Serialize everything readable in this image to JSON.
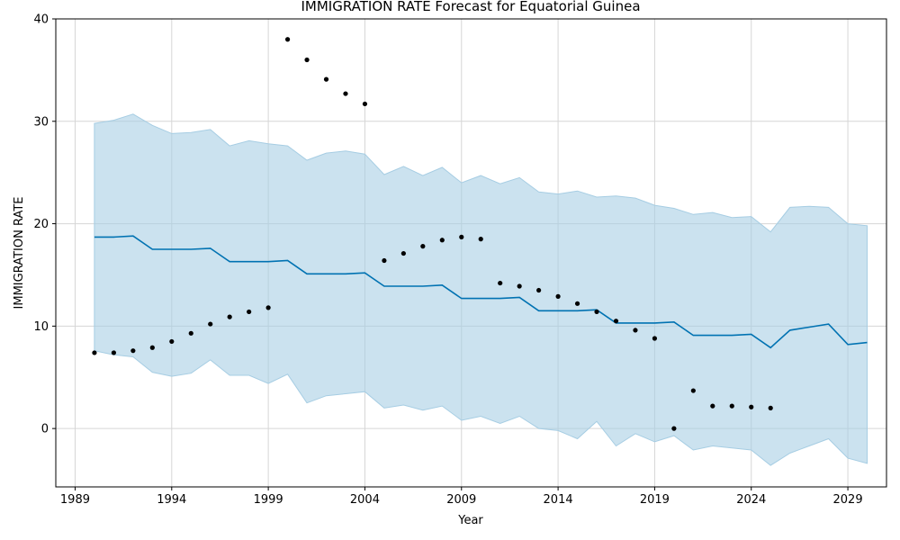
{
  "chart_data": {
    "type": "line",
    "title": "IMMIGRATION RATE Forecast for Equatorial Guinea",
    "xlabel": "Year",
    "ylabel": "IMMIGRATION RATE",
    "xlim": [
      1988,
      2031
    ],
    "ylim": [
      -5.7,
      40
    ],
    "x_ticks": [
      1989,
      1994,
      1999,
      2004,
      2009,
      2014,
      2019,
      2024,
      2029
    ],
    "y_ticks": [
      0,
      10,
      20,
      30,
      40
    ],
    "grid": true,
    "colors": {
      "forecast": "#0072b2",
      "interval": "#a6cde3",
      "observed": "#000000"
    },
    "forecast": {
      "x": [
        1990,
        1991,
        1992,
        1993,
        1994,
        1995,
        1996,
        1997,
        1998,
        1999,
        2000,
        2001,
        2002,
        2003,
        2004,
        2005,
        2006,
        2007,
        2008,
        2009,
        2010,
        2011,
        2012,
        2013,
        2014,
        2015,
        2016,
        2017,
        2018,
        2019,
        2020,
        2021,
        2022,
        2023,
        2024,
        2025,
        2026,
        2027,
        2028,
        2029,
        2030
      ],
      "yhat": [
        18.7,
        18.7,
        18.8,
        17.5,
        17.5,
        17.5,
        17.6,
        16.3,
        16.3,
        16.3,
        16.4,
        15.1,
        15.1,
        15.1,
        15.2,
        13.9,
        13.9,
        13.9,
        14.0,
        12.7,
        12.7,
        12.7,
        12.8,
        11.5,
        11.5,
        11.5,
        11.6,
        10.3,
        10.3,
        10.3,
        10.4,
        9.1,
        9.1,
        9.1,
        9.2,
        7.9,
        9.6,
        9.9,
        10.2,
        8.2,
        8.4
      ],
      "yhat_upper": [
        29.8,
        30.1,
        30.7,
        29.6,
        28.8,
        28.9,
        29.2,
        27.6,
        28.1,
        27.8,
        27.6,
        26.2,
        26.9,
        27.1,
        26.8,
        24.8,
        25.6,
        24.7,
        25.5,
        24.0,
        24.7,
        23.9,
        24.5,
        23.1,
        22.9,
        23.2,
        22.6,
        22.7,
        22.5,
        21.8,
        21.5,
        20.9,
        21.1,
        20.6,
        20.7,
        19.2,
        21.6,
        21.7,
        21.6,
        20.0,
        19.8
      ],
      "yhat_lower": [
        7.6,
        7.2,
        7.0,
        5.5,
        5.1,
        5.4,
        6.7,
        5.2,
        5.2,
        4.4,
        5.3,
        2.5,
        3.2,
        3.4,
        3.6,
        2.0,
        2.3,
        1.8,
        2.2,
        0.8,
        1.2,
        0.5,
        1.2,
        0.0,
        -0.2,
        -1.0,
        0.7,
        -1.7,
        -0.5,
        -1.3,
        -0.7,
        -2.1,
        -1.7,
        -1.9,
        -2.1,
        -3.6,
        -2.4,
        -1.7,
        -1.0,
        -2.9,
        -3.4
      ]
    },
    "observed": {
      "x": [
        1990,
        1991,
        1992,
        1993,
        1994,
        1995,
        1996,
        1997,
        1998,
        1999,
        2000,
        2001,
        2002,
        2003,
        2004,
        2005,
        2006,
        2007,
        2008,
        2009,
        2010,
        2011,
        2012,
        2013,
        2014,
        2015,
        2016,
        2017,
        2018,
        2019,
        2020,
        2021,
        2022,
        2023,
        2024,
        2025
      ],
      "y": [
        7.4,
        7.4,
        7.6,
        7.9,
        8.5,
        9.3,
        10.2,
        10.9,
        11.4,
        11.8,
        38.0,
        36.0,
        34.1,
        32.7,
        31.7,
        16.4,
        17.1,
        17.8,
        18.4,
        18.7,
        18.5,
        14.2,
        13.9,
        13.5,
        12.9,
        12.2,
        11.4,
        10.5,
        9.6,
        8.8,
        0.0,
        3.7,
        2.2,
        2.2,
        2.1,
        2.0
      ]
    }
  }
}
